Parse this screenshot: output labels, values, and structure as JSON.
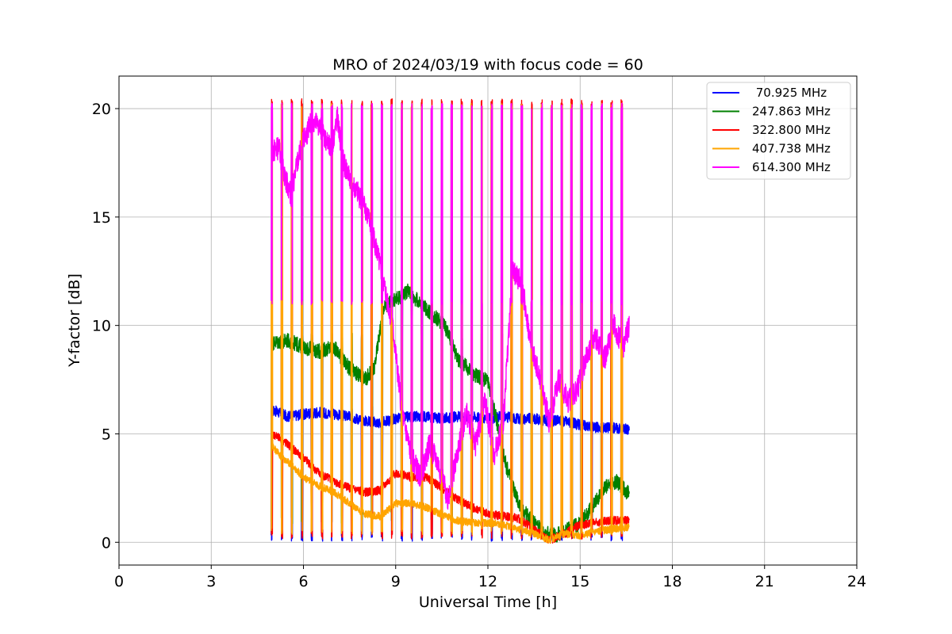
{
  "chart_data": {
    "type": "line",
    "title": "MRO of 2024/03/19 with focus code = 60",
    "xlabel": "Universal Time [h]",
    "ylabel": "Y-factor [dB]",
    "xlim": [
      0,
      24
    ],
    "ylim": [
      -1.05,
      21.5
    ],
    "xticks": [
      0,
      3,
      6,
      9,
      12,
      15,
      18,
      21,
      24
    ],
    "yticks": [
      0,
      5,
      10,
      15,
      20
    ],
    "grid": true,
    "legend_position": "top-right",
    "cal_pulse_times": [
      4.95,
      5.28,
      5.6,
      5.93,
      6.25,
      6.58,
      6.9,
      7.23,
      7.55,
      7.88,
      8.2,
      8.53,
      8.85,
      9.18,
      9.5,
      9.83,
      10.15,
      10.48,
      10.8,
      11.13,
      11.45,
      11.78,
      12.1,
      12.43,
      12.75,
      13.08,
      13.4,
      13.73,
      14.05,
      14.38,
      14.7,
      15.03,
      15.35,
      15.68,
      16.0,
      16.33,
      16.6
    ],
    "series": [
      {
        "name": " 70.925 MHz",
        "color": "#0000ff",
        "x": [
          5.0,
          5.5,
          6.0,
          6.5,
          7.0,
          7.5,
          8.0,
          8.5,
          9.0,
          9.5,
          10.0,
          10.5,
          11.0,
          11.5,
          12.0,
          12.5,
          13.0,
          13.5,
          14.0,
          14.5,
          15.0,
          15.5,
          16.0,
          16.6
        ],
        "y": [
          6.1,
          5.8,
          5.9,
          6.0,
          5.9,
          5.8,
          5.6,
          5.5,
          5.7,
          5.8,
          5.8,
          5.7,
          5.8,
          5.8,
          5.7,
          5.8,
          5.7,
          5.7,
          5.6,
          5.6,
          5.4,
          5.3,
          5.3,
          5.2
        ],
        "pulse_low": 0.2,
        "pulse_high": 6.2
      },
      {
        "name": "247.863 MHz",
        "color": "#008000",
        "x": [
          5.0,
          5.5,
          6.0,
          6.5,
          7.0,
          7.5,
          8.0,
          8.3,
          8.6,
          9.0,
          9.4,
          9.8,
          10.2,
          10.6,
          11.0,
          11.5,
          12.0,
          12.3,
          12.6,
          13.0,
          13.4,
          13.8,
          14.2,
          14.6,
          15.0,
          15.4,
          15.8,
          16.2,
          16.6
        ],
        "y": [
          9.2,
          9.3,
          9.0,
          8.8,
          9.0,
          8.0,
          7.5,
          8.0,
          10.8,
          11.2,
          11.6,
          11.0,
          10.5,
          10.0,
          8.5,
          7.8,
          7.4,
          5.5,
          3.5,
          1.8,
          1.0,
          0.5,
          0.3,
          0.6,
          0.9,
          1.6,
          2.5,
          2.8,
          2.2
        ],
        "pulse_low": 1.0,
        "pulse_high": 9.5
      },
      {
        "name": "322.800 MHz",
        "color": "#ff0000",
        "x": [
          5.0,
          5.5,
          6.0,
          6.5,
          7.0,
          7.5,
          8.0,
          8.5,
          9.0,
          9.5,
          10.0,
          10.5,
          11.0,
          11.5,
          12.0,
          12.5,
          13.0,
          13.5,
          14.0,
          14.5,
          15.0,
          15.5,
          16.0,
          16.6
        ],
        "y": [
          5.0,
          4.5,
          3.9,
          3.2,
          2.8,
          2.5,
          2.3,
          2.4,
          3.2,
          3.0,
          3.0,
          2.5,
          2.0,
          1.6,
          1.3,
          1.2,
          1.1,
          0.6,
          0.1,
          0.4,
          0.8,
          0.9,
          1.0,
          1.0
        ],
        "pulse_low": 0.3,
        "pulse_high": 20.3
      },
      {
        "name": "407.738 MHz",
        "color": "#ffa500",
        "x": [
          5.0,
          5.3,
          5.6,
          6.0,
          6.5,
          7.0,
          7.5,
          8.0,
          8.5,
          9.0,
          9.5,
          10.0,
          10.5,
          11.0,
          11.5,
          12.0,
          12.5,
          13.0,
          13.5,
          14.0,
          14.5,
          15.0,
          15.5,
          16.0,
          16.6
        ],
        "y": [
          4.4,
          3.9,
          3.6,
          3.0,
          2.6,
          2.3,
          1.8,
          1.3,
          1.2,
          1.8,
          1.8,
          1.6,
          1.3,
          1.0,
          0.9,
          0.9,
          0.8,
          0.6,
          0.4,
          0.1,
          0.4,
          0.3,
          0.5,
          0.6,
          0.7
        ],
        "pulse_low": 0.5,
        "pulse_high": 20.1,
        "mid_level": 11.1
      },
      {
        "name": "614.300 MHz",
        "color": "#ff00ff",
        "x": [
          5.0,
          5.2,
          5.4,
          5.6,
          5.8,
          6.0,
          6.3,
          6.6,
          6.9,
          7.1,
          7.3,
          7.6,
          8.0,
          8.3,
          8.6,
          8.9,
          9.2,
          9.5,
          9.8,
          10.1,
          10.4,
          10.7,
          11.0,
          11.3,
          11.6,
          11.9,
          12.2,
          12.5,
          12.8,
          13.1,
          13.4,
          13.7,
          14.0,
          14.3,
          14.6,
          14.9,
          15.2,
          15.5,
          15.8,
          16.1,
          16.4,
          16.6
        ],
        "y": [
          18.0,
          18.2,
          16.8,
          16.0,
          17.5,
          18.5,
          19.5,
          19.0,
          18.0,
          19.6,
          17.5,
          16.5,
          15.5,
          14.0,
          12.0,
          10.0,
          6.0,
          4.0,
          3.0,
          4.5,
          3.5,
          2.0,
          4.0,
          6.0,
          4.5,
          6.5,
          4.0,
          5.5,
          12.5,
          12.0,
          9.0,
          7.5,
          5.5,
          7.5,
          6.5,
          7.0,
          8.5,
          9.5,
          8.5,
          10.0,
          9.0,
          10.0
        ],
        "pulse_low": 11.1,
        "pulse_high": 20.1
      }
    ]
  }
}
